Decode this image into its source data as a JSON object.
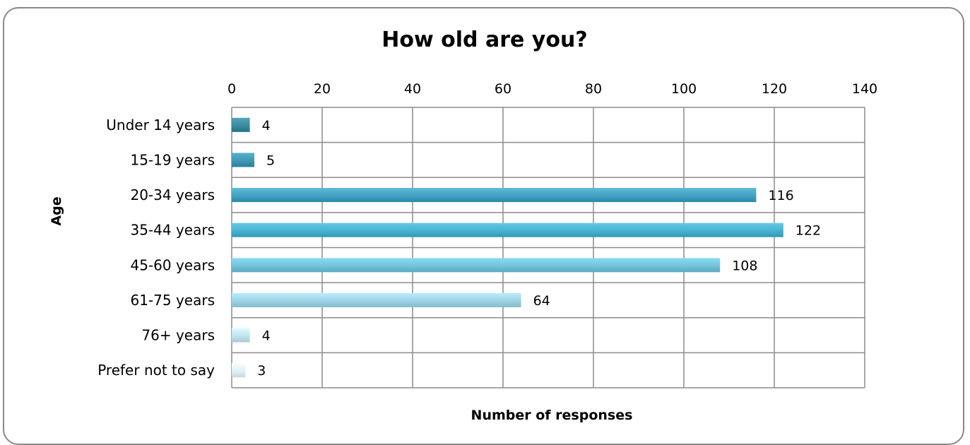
{
  "chart_data": {
    "type": "bar",
    "orientation": "horizontal",
    "title": "How old are you?",
    "xlabel": "Number of responses",
    "ylabel": "Age",
    "xlim": [
      0,
      140
    ],
    "x_ticks": [
      0,
      20,
      40,
      60,
      80,
      100,
      120,
      140
    ],
    "x_tick_labels": [
      "0",
      "20",
      "40",
      "60",
      "80",
      "100",
      "120",
      "140"
    ],
    "x_axis_position": "top",
    "grid": true,
    "legend": "none",
    "categories": [
      "Under 14 years",
      "15-19 years",
      "20-34 years",
      "35-44 years",
      "45-60 years",
      "61-75 years",
      "76+ years",
      "Prefer not to say"
    ],
    "values": [
      4,
      5,
      116,
      122,
      108,
      64,
      4,
      3
    ],
    "value_labels": [
      "4",
      "5",
      "116",
      "122",
      "108",
      "64",
      "4",
      "3"
    ],
    "bar_colors": [
      "#3a8aa0",
      "#3f97b4",
      "#43a2c2",
      "#4ab1d0",
      "#72c2da",
      "#9ed3e4",
      "#c2e3ee",
      "#dff0f6"
    ]
  }
}
